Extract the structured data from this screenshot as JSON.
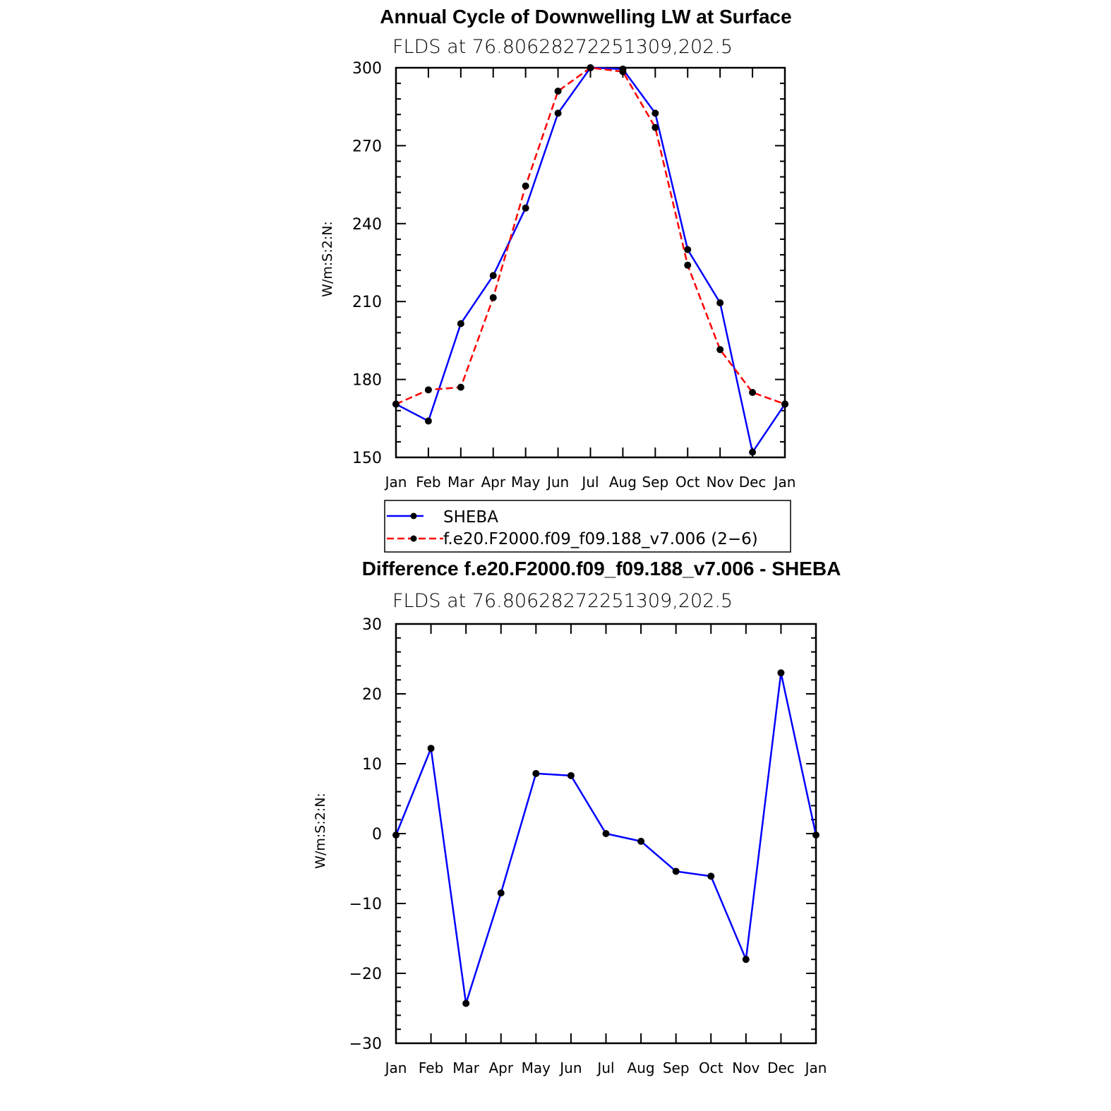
{
  "chart_data": [
    {
      "type": "line",
      "title": "Annual Cycle of Downwelling LW at Surface",
      "subtitle": "FLDS at 76.80628272251309,202.5",
      "ylabel": "W/m:S:2:N:",
      "xlabel": "",
      "categories": [
        "Jan",
        "Feb",
        "Mar",
        "Apr",
        "May",
        "Jun",
        "Jul",
        "Aug",
        "Sep",
        "Oct",
        "Nov",
        "Dec",
        "Jan"
      ],
      "ylim": [
        150,
        300
      ],
      "yticks": [
        150,
        180,
        210,
        240,
        270,
        300
      ],
      "series": [
        {
          "name": "SHEBA",
          "color": "#0000ff",
          "style": "solid",
          "values": [
            170.5,
            164,
            201.5,
            220,
            246,
            282.5,
            300,
            299.5,
            282.5,
            230,
            209.5,
            152,
            170.5
          ]
        },
        {
          "name": "f.e20.F2000.f09_f09.188_v7.006 (2−6)",
          "color": "#ff0000",
          "style": "dashed",
          "values": [
            170.5,
            176,
            177,
            211.5,
            254.5,
            291,
            300,
            298.5,
            277,
            224,
            191.5,
            175,
            170.5
          ]
        }
      ],
      "legend": "below"
    },
    {
      "type": "line",
      "title": "Difference f.e20.F2000.f09_f09.188_v7.006 - SHEBA",
      "subtitle": "FLDS at 76.80628272251309,202.5",
      "ylabel": "W/m:S:2:N:",
      "xlabel": "",
      "categories": [
        "Jan",
        "Feb",
        "Mar",
        "Apr",
        "May",
        "Jun",
        "Jul",
        "Aug",
        "Sep",
        "Oct",
        "Nov",
        "Dec",
        "Jan"
      ],
      "ylim": [
        -30,
        30
      ],
      "yticks": [
        -30,
        -20,
        -10,
        0,
        10,
        20,
        30
      ],
      "ytick_labels": [
        "−30",
        "−20",
        "−10",
        "0",
        "10",
        "20",
        "30"
      ],
      "series": [
        {
          "color": "#0000ff",
          "style": "solid",
          "values": [
            -0.2,
            12.2,
            -24.3,
            -8.5,
            8.6,
            8.3,
            0,
            -1.1,
            -5.4,
            -6.1,
            -18,
            23,
            -0.2
          ]
        }
      ]
    }
  ]
}
